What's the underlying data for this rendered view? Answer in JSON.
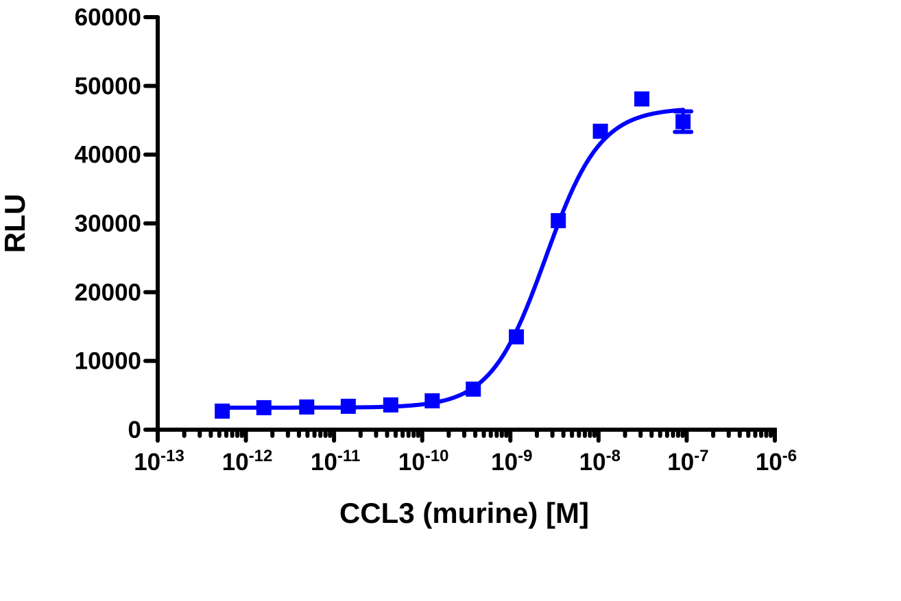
{
  "chart_data": {
    "type": "scatter",
    "xlabel": "CCL3 (murine) [M]",
    "ylabel": "RLU",
    "x_scale": "log",
    "xlim": [
      1e-13,
      1e-06
    ],
    "ylim": [
      0,
      60000
    ],
    "x_ticks": [
      {
        "base": "10",
        "exp": "-13",
        "value": -13
      },
      {
        "base": "10",
        "exp": "-12",
        "value": -12
      },
      {
        "base": "10",
        "exp": "-11",
        "value": -11
      },
      {
        "base": "10",
        "exp": "-10",
        "value": -10
      },
      {
        "base": "10",
        "exp": "-9",
        "value": -9
      },
      {
        "base": "10",
        "exp": "-8",
        "value": -8
      },
      {
        "base": "10",
        "exp": "-7",
        "value": -7
      },
      {
        "base": "10",
        "exp": "-6",
        "value": -6
      }
    ],
    "y_ticks": [
      "0",
      "10000",
      "20000",
      "30000",
      "40000",
      "50000",
      "60000"
    ],
    "grid": false,
    "color": "#0000ff",
    "points": [
      {
        "x": 5.4e-13,
        "y": 2700
      },
      {
        "x": 1.6e-12,
        "y": 3200
      },
      {
        "x": 4.9e-12,
        "y": 3300
      },
      {
        "x": 1.45e-11,
        "y": 3400
      },
      {
        "x": 4.4e-11,
        "y": 3600
      },
      {
        "x": 1.3e-10,
        "y": 4200
      },
      {
        "x": 3.8e-10,
        "y": 5900
      },
      {
        "x": 1.17e-09,
        "y": 13500
      },
      {
        "x": 3.5e-09,
        "y": 30400
      },
      {
        "x": 1.05e-08,
        "y": 43400
      },
      {
        "x": 3.1e-08,
        "y": 48100
      },
      {
        "x": 9.1e-08,
        "y": 44800,
        "error": 1500
      }
    ],
    "fit": {
      "model": "4PL",
      "bottom": 3200,
      "top": 46800,
      "logEC50": -8.6,
      "hill": 1.4
    }
  }
}
